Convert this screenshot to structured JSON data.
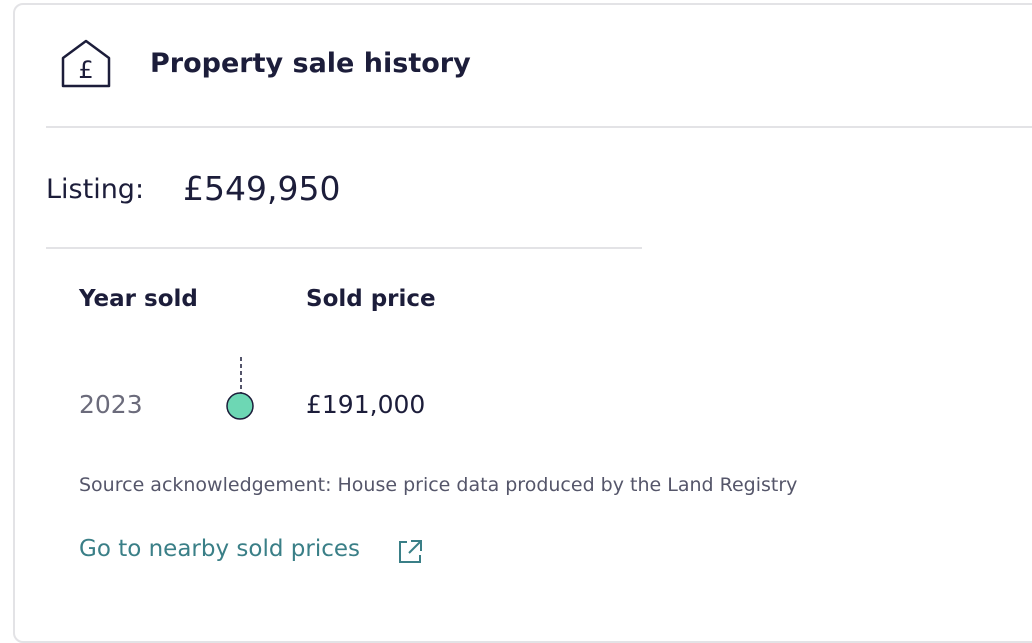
{
  "header": {
    "title": "Property sale history"
  },
  "listing": {
    "label": "Listing:",
    "price": "£549,950"
  },
  "table": {
    "headers": [
      "Year sold",
      "Sold price"
    ],
    "rows": [
      [
        "2023",
        "£191,000"
      ]
    ]
  },
  "source": "Source acknowledgement: House price data produced by the Land Registry",
  "link": "Go to nearby sold prices"
}
